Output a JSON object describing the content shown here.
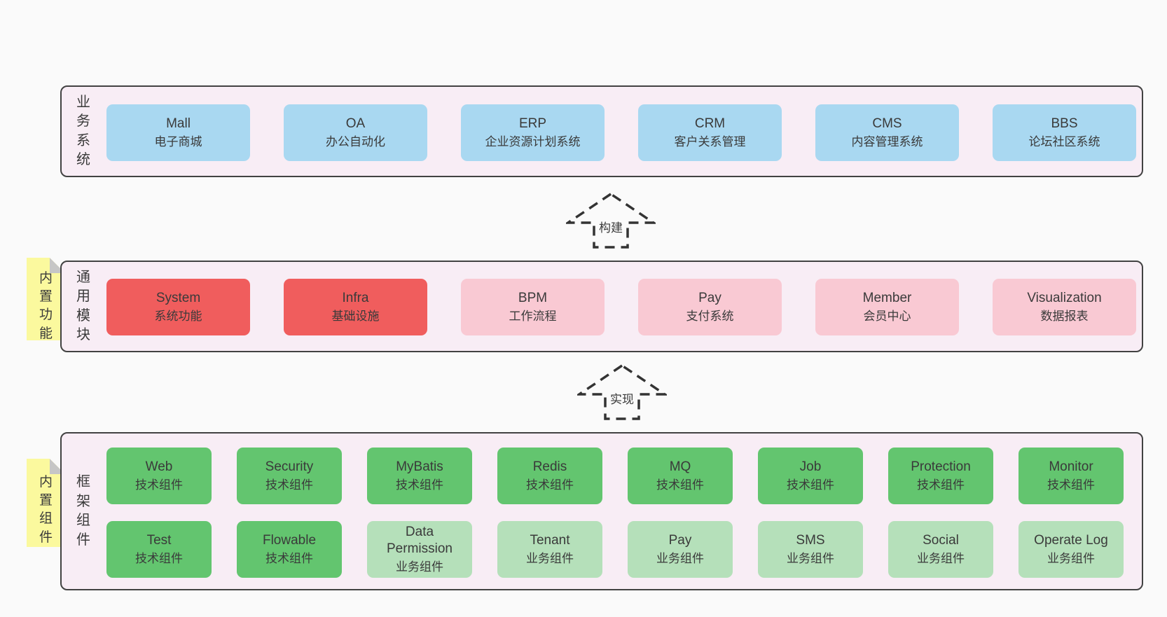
{
  "colors": {
    "page-bg": "#fafafa",
    "panel-bg": "#f8edf5",
    "panel-border": "#424242",
    "blue": "#a9d8f1",
    "red": "#f05d5d",
    "pink": "#f9c9d3",
    "green": "#63c56f",
    "lgreen": "#b5e0ba",
    "note-bg": "#fbf99e",
    "note-fold": "#c6c6c6",
    "ink": "#3a3a3a",
    "arrow-stroke": "#333333"
  },
  "sections": {
    "business": {
      "label": "业务系统",
      "boxes": [
        {
          "title": "Mall",
          "subtitle": "电子商城",
          "color": "blue"
        },
        {
          "title": "OA",
          "subtitle": "办公自动化",
          "color": "blue"
        },
        {
          "title": "ERP",
          "subtitle": "企业资源计划系统",
          "color": "blue"
        },
        {
          "title": "CRM",
          "subtitle": "客户关系管理",
          "color": "blue"
        },
        {
          "title": "CMS",
          "subtitle": "内容管理系统",
          "color": "blue"
        },
        {
          "title": "BBS",
          "subtitle": "论坛社区系统",
          "color": "blue"
        }
      ]
    },
    "modules": {
      "label": "通用模块",
      "note": "内置功能",
      "boxes": [
        {
          "title": "System",
          "subtitle": "系统功能",
          "color": "red"
        },
        {
          "title": "Infra",
          "subtitle": "基础设施",
          "color": "red"
        },
        {
          "title": "BPM",
          "subtitle": "工作流程",
          "color": "pink"
        },
        {
          "title": "Pay",
          "subtitle": "支付系统",
          "color": "pink"
        },
        {
          "title": "Member",
          "subtitle": "会员中心",
          "color": "pink"
        },
        {
          "title": "Visualization",
          "subtitle": "数据报表",
          "color": "pink"
        }
      ]
    },
    "framework": {
      "label": "框架组件",
      "note": "内置组件",
      "rows": [
        [
          {
            "title": "Web",
            "subtitle": "技术组件",
            "color": "green"
          },
          {
            "title": "Security",
            "subtitle": "技术组件",
            "color": "green"
          },
          {
            "title": "MyBatis",
            "subtitle": "技术组件",
            "color": "green"
          },
          {
            "title": "Redis",
            "subtitle": "技术组件",
            "color": "green"
          },
          {
            "title": "MQ",
            "subtitle": "技术组件",
            "color": "green"
          },
          {
            "title": "Job",
            "subtitle": "技术组件",
            "color": "green"
          },
          {
            "title": "Protection",
            "subtitle": "技术组件",
            "color": "green"
          },
          {
            "title": "Monitor",
            "subtitle": "技术组件",
            "color": "green"
          }
        ],
        [
          {
            "title": "Test",
            "subtitle": "技术组件",
            "color": "green"
          },
          {
            "title": "Flowable",
            "subtitle": "技术组件",
            "color": "green"
          },
          {
            "title": "Data Permission",
            "subtitle": "业务组件",
            "color": "lgreen"
          },
          {
            "title": "Tenant",
            "subtitle": "业务组件",
            "color": "lgreen"
          },
          {
            "title": "Pay",
            "subtitle": "业务组件",
            "color": "lgreen"
          },
          {
            "title": "SMS",
            "subtitle": "业务组件",
            "color": "lgreen"
          },
          {
            "title": "Social",
            "subtitle": "业务组件",
            "color": "lgreen"
          },
          {
            "title": "Operate Log",
            "subtitle": "业务组件",
            "color": "lgreen"
          }
        ]
      ]
    }
  },
  "arrows": {
    "build": "构建",
    "implement": "实现"
  }
}
